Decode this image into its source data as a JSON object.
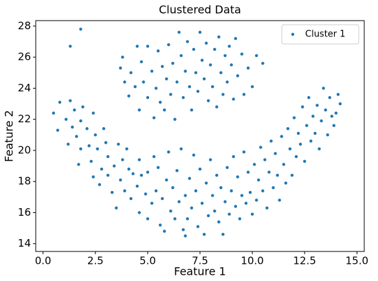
{
  "chart_data": {
    "type": "scatter",
    "title": "Clustered Data",
    "xlabel": "Feature 1",
    "ylabel": "Feature 2",
    "xlim": [
      -0.35,
      15.35
    ],
    "ylim": [
      13.5,
      28.35
    ],
    "xticks": [
      {
        "value": 0,
        "label": "0.0"
      },
      {
        "value": 2.5,
        "label": "2.5"
      },
      {
        "value": 5,
        "label": "5.0"
      },
      {
        "value": 7.5,
        "label": "7.5"
      },
      {
        "value": 10,
        "label": "10.0"
      },
      {
        "value": 12.5,
        "label": "12.5"
      },
      {
        "value": 15,
        "label": "15.0"
      }
    ],
    "yticks": [
      14,
      16,
      18,
      20,
      22,
      24,
      26,
      28
    ],
    "grid": false,
    "legend": "upper right",
    "series": [
      {
        "name": "Cluster 1",
        "color": "#1f77b4",
        "x": [
          0.5,
          0.7,
          0.8,
          1.1,
          1.3,
          1.2,
          1.4,
          1.5,
          1.6,
          1.7,
          1.8,
          1.8,
          1.9,
          2.1,
          2.2,
          2.3,
          2.4,
          2.4,
          2.5,
          2.6,
          2.7,
          2.8,
          2.9,
          3.0,
          3.1,
          3.1,
          3.3,
          3.4,
          3.5,
          3.6,
          3.7,
          3.8,
          3.9,
          4.0,
          4.1,
          4.2,
          4.3,
          4.5,
          4.6,
          4.6,
          4.7,
          4.9,
          5.0,
          5.0,
          5.2,
          5.3,
          5.4,
          5.5,
          5.6,
          5.7,
          5.8,
          5.9,
          6.0,
          6.1,
          6.2,
          6.3,
          6.4,
          6.5,
          6.6,
          6.7,
          6.8,
          6.8,
          6.9,
          7.0,
          7.1,
          7.2,
          7.3,
          7.4,
          7.5,
          7.6,
          7.7,
          7.8,
          7.9,
          8.0,
          8.1,
          8.2,
          8.3,
          8.4,
          8.5,
          8.6,
          8.7,
          8.8,
          8.9,
          9.0,
          9.1,
          9.2,
          9.3,
          9.4,
          9.5,
          9.6,
          9.7,
          9.8,
          9.9,
          10.0,
          10.1,
          10.2,
          10.3,
          10.4,
          10.5,
          10.6,
          10.7,
          10.8,
          10.9,
          11.0,
          11.1,
          11.2,
          11.3,
          11.4,
          11.5,
          11.6,
          11.7,
          11.8,
          11.9,
          12.0,
          12.1,
          12.2,
          12.3,
          12.4,
          12.5,
          12.6,
          12.7,
          12.8,
          12.9,
          13.0,
          13.1,
          13.2,
          13.3,
          13.4,
          13.5,
          13.6,
          13.7,
          13.8,
          13.9,
          14.0,
          14.1,
          14.2,
          3.7,
          3.8,
          3.9,
          4.1,
          4.2,
          4.4,
          4.5,
          4.6,
          4.7,
          4.8,
          5.0,
          5.0,
          5.2,
          5.3,
          5.4,
          5.5,
          5.6,
          5.7,
          5.8,
          5.9,
          6.0,
          6.1,
          6.2,
          6.3,
          6.4,
          6.5,
          6.6,
          6.7,
          6.8,
          6.9,
          7.0,
          7.1,
          7.2,
          7.3,
          7.4,
          7.5,
          7.6,
          7.7,
          7.8,
          7.9,
          8.0,
          8.1,
          8.2,
          8.3,
          8.4,
          8.5,
          8.6,
          8.7,
          8.8,
          8.9,
          9.0,
          9.1,
          9.2,
          9.3,
          9.5,
          9.6,
          9.8,
          10.0,
          10.2,
          10.5,
          1.8,
          1.3
        ],
        "y": [
          22.4,
          21.3,
          23.1,
          22.0,
          23.2,
          20.4,
          21.5,
          22.6,
          20.9,
          19.1,
          20.1,
          21.9,
          22.8,
          21.4,
          20.3,
          19.3,
          22.4,
          18.3,
          21.0,
          20.1,
          17.8,
          18.8,
          21.4,
          20.5,
          19.6,
          18.4,
          17.3,
          19.0,
          16.3,
          20.4,
          18.1,
          19.4,
          17.4,
          20.1,
          18.8,
          16.9,
          18.5,
          17.7,
          16.0,
          19.4,
          18.4,
          17.2,
          15.6,
          18.6,
          16.6,
          19.6,
          17.4,
          18.9,
          15.2,
          16.9,
          14.8,
          18.1,
          19.9,
          16.1,
          17.6,
          15.6,
          18.7,
          16.7,
          20.1,
          14.9,
          14.5,
          17.1,
          15.6,
          18.2,
          16.3,
          19.7,
          17.4,
          15.1,
          18.8,
          16.6,
          14.6,
          17.9,
          15.8,
          19.4,
          17.1,
          16.1,
          18.4,
          15.4,
          17.6,
          14.6,
          16.7,
          18.9,
          15.9,
          17.4,
          19.6,
          16.4,
          18.3,
          15.6,
          17.1,
          19.9,
          16.6,
          18.6,
          17.3,
          15.9,
          19.1,
          16.8,
          18.1,
          20.2,
          17.4,
          19.4,
          16.3,
          18.6,
          20.6,
          17.6,
          19.8,
          18.4,
          16.8,
          20.9,
          19.1,
          17.9,
          21.4,
          20.1,
          18.4,
          22.1,
          19.6,
          21.1,
          20.4,
          22.8,
          19.3,
          21.6,
          23.4,
          20.6,
          22.2,
          21.1,
          22.9,
          20.1,
          21.9,
          24.0,
          22.6,
          21.0,
          23.4,
          22.2,
          21.6,
          22.4,
          23.6,
          23.0,
          25.3,
          26.0,
          24.4,
          23.5,
          25.0,
          24.1,
          26.7,
          22.6,
          25.7,
          24.4,
          26.7,
          23.4,
          25.1,
          22.1,
          24.0,
          26.4,
          23.1,
          25.4,
          22.6,
          24.6,
          26.8,
          23.6,
          25.6,
          22.0,
          24.4,
          27.6,
          26.1,
          23.4,
          25.1,
          27.0,
          24.1,
          22.6,
          26.5,
          25.0,
          23.8,
          27.6,
          25.8,
          24.6,
          26.9,
          23.2,
          25.5,
          24.1,
          26.5,
          22.8,
          27.3,
          25.0,
          23.6,
          26.1,
          24.4,
          26.7,
          25.5,
          23.3,
          27.2,
          24.8,
          26.2,
          23.6,
          25.3,
          24.1,
          26.1,
          25.6,
          27.8,
          26.7
        ]
      }
    ]
  }
}
